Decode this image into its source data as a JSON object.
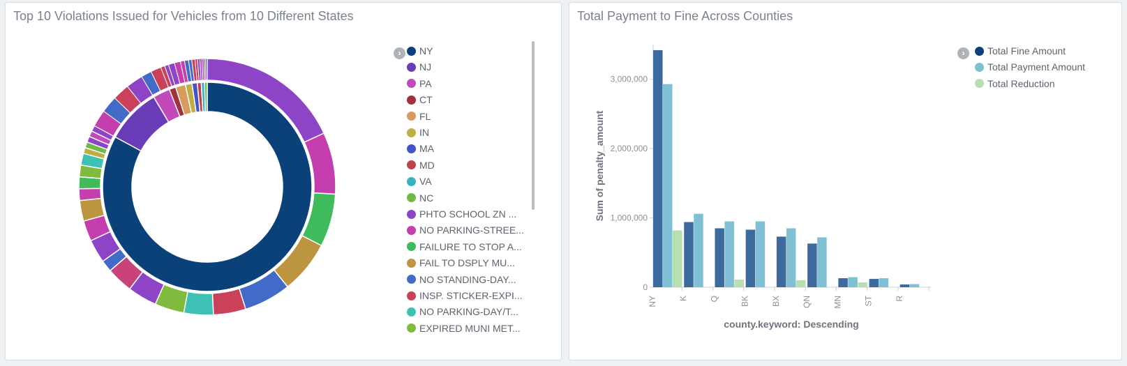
{
  "left_panel": {
    "title": "Top 10 Violations Issued for Vehicles from 10 Different States"
  },
  "right_panel": {
    "title": "Total Payment to Fine Across Counties"
  },
  "chart_data": [
    {
      "type": "pie",
      "donut": true,
      "legend_placement": "right",
      "legend": [
        {
          "label": "NY",
          "color": "#0b4179"
        },
        {
          "label": "NJ",
          "color": "#6a3cb8"
        },
        {
          "label": "PA",
          "color": "#c149b9"
        },
        {
          "label": "CT",
          "color": "#a3303a"
        },
        {
          "label": "FL",
          "color": "#d99b5c"
        },
        {
          "label": "IN",
          "color": "#bfae45"
        },
        {
          "label": "MA",
          "color": "#4355c9"
        },
        {
          "label": "MD",
          "color": "#bd4348"
        },
        {
          "label": "VA",
          "color": "#3ab2c2"
        },
        {
          "label": "NC",
          "color": "#6dbb46"
        },
        {
          "label": "PHTO SCHOOL ZN ...",
          "color": "#8e44c6"
        },
        {
          "label": "NO PARKING-STREE...",
          "color": "#c53eb0"
        },
        {
          "label": "FAILURE TO STOP A...",
          "color": "#3fbb5c"
        },
        {
          "label": "FAIL TO DSPLY MU...",
          "color": "#bd9440"
        },
        {
          "label": "NO STANDING-DAY...",
          "color": "#416ac9"
        },
        {
          "label": "INSP. STICKER-EXPI...",
          "color": "#c9425a"
        },
        {
          "label": "NO PARKING-DAY/T...",
          "color": "#3ec1b5"
        },
        {
          "label": "EXPIRED MUNI MET...",
          "color": "#80bb3e"
        }
      ],
      "inner_ring": [
        {
          "label": "NY",
          "value": 81.5
        },
        {
          "label": "NJ",
          "value": 8.4
        },
        {
          "label": "PA",
          "value": 2.6
        },
        {
          "label": "CT",
          "value": 1.0
        },
        {
          "label": "FL",
          "value": 1.5
        },
        {
          "label": "IN",
          "value": 1.0
        },
        {
          "label": "MA",
          "value": 0.8
        },
        {
          "label": "MD",
          "value": 0.6
        },
        {
          "label": "VA",
          "value": 0.5
        },
        {
          "label": "NC",
          "value": 0.4
        }
      ],
      "outer_ring_colors": [
        "#8e44c6",
        "#c53eb0",
        "#3fbb5c",
        "#bd9440",
        "#416ac9",
        "#c9425a",
        "#3ec1b5",
        "#80bb3e",
        "#8e44c6",
        "#c9427a",
        "#416ac9",
        "#8e44c6",
        "#c53eb0",
        "#bd9440",
        "#c53eb0",
        "#3fbb5c",
        "#80bb3e",
        "#3ec1b5",
        "#bfae45",
        "#6dbb46",
        "#8e44c6",
        "#c149b9",
        "#8e44c6"
      ]
    },
    {
      "type": "bar",
      "categories": [
        "NY",
        "K",
        "Q",
        "BK",
        "BX",
        "QN",
        "MN",
        "ST",
        "R"
      ],
      "series": [
        {
          "name": "Total Fine Amount",
          "color": "#3d6a9c",
          "values": [
            3420000,
            940000,
            850000,
            830000,
            730000,
            630000,
            130000,
            120000,
            40000
          ]
        },
        {
          "name": "Total Payment Amount",
          "color": "#80c0d4",
          "values": [
            2930000,
            1060000,
            950000,
            950000,
            850000,
            720000,
            145000,
            130000,
            45000
          ]
        },
        {
          "name": "Total Reduction",
          "color": "#b7dfb1",
          "values": [
            820000,
            0,
            110000,
            0,
            100000,
            0,
            70000,
            0,
            0
          ]
        }
      ],
      "ylabel": "Sum of penalty_amount",
      "xlabel": "county.keyword: Descending",
      "yticks": [
        "0",
        "1,000,000",
        "2,000,000",
        "3,000,000"
      ],
      "ytick_values": [
        0,
        1000000,
        2000000,
        3000000
      ],
      "ylim": [
        0,
        3500000
      ],
      "legend_placement": "top-right"
    }
  ]
}
